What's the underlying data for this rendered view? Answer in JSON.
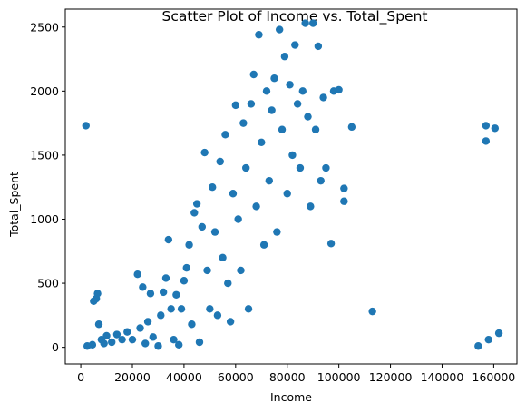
{
  "chart_data": {
    "type": "scatter",
    "title": "Scatter Plot of Income vs. Total_Spent",
    "xlabel": "Income",
    "ylabel": "Total_Spent",
    "xlim": [
      -6000,
      169000
    ],
    "ylim": [
      -130,
      2640
    ],
    "x_ticks": [
      0,
      20000,
      40000,
      60000,
      80000,
      100000,
      120000,
      140000,
      160000
    ],
    "y_ticks": [
      0,
      500,
      1000,
      1500,
      2000,
      2500
    ],
    "grid": false,
    "marker_color": "#1f77b4",
    "series": [
      {
        "points": [
          [
            2000,
            1730
          ],
          [
            2500,
            10
          ],
          [
            4500,
            20
          ],
          [
            5000,
            360
          ],
          [
            6000,
            380
          ],
          [
            6500,
            420
          ],
          [
            7000,
            180
          ],
          [
            8000,
            60
          ],
          [
            9000,
            30
          ],
          [
            10000,
            90
          ],
          [
            12000,
            40
          ],
          [
            14000,
            100
          ],
          [
            16000,
            60
          ],
          [
            18000,
            120
          ],
          [
            20000,
            60
          ],
          [
            22000,
            570
          ],
          [
            23000,
            150
          ],
          [
            24000,
            470
          ],
          [
            25000,
            30
          ],
          [
            26000,
            200
          ],
          [
            27000,
            420
          ],
          [
            28000,
            80
          ],
          [
            30000,
            10
          ],
          [
            31000,
            250
          ],
          [
            32000,
            430
          ],
          [
            33000,
            540
          ],
          [
            34000,
            840
          ],
          [
            35000,
            300
          ],
          [
            36000,
            60
          ],
          [
            37000,
            410
          ],
          [
            38000,
            20
          ],
          [
            39000,
            300
          ],
          [
            40000,
            520
          ],
          [
            41000,
            620
          ],
          [
            42000,
            800
          ],
          [
            43000,
            180
          ],
          [
            44000,
            1050
          ],
          [
            45000,
            1120
          ],
          [
            46000,
            40
          ],
          [
            47000,
            940
          ],
          [
            48000,
            1520
          ],
          [
            49000,
            600
          ],
          [
            50000,
            300
          ],
          [
            51000,
            1250
          ],
          [
            52000,
            900
          ],
          [
            53000,
            250
          ],
          [
            54000,
            1450
          ],
          [
            55000,
            700
          ],
          [
            56000,
            1660
          ],
          [
            57000,
            500
          ],
          [
            58000,
            200
          ],
          [
            59000,
            1200
          ],
          [
            60000,
            1890
          ],
          [
            61000,
            1000
          ],
          [
            62000,
            600
          ],
          [
            63000,
            1750
          ],
          [
            64000,
            1400
          ],
          [
            65000,
            300
          ],
          [
            66000,
            1900
          ],
          [
            67000,
            2130
          ],
          [
            68000,
            1100
          ],
          [
            69000,
            2440
          ],
          [
            70000,
            1600
          ],
          [
            71000,
            800
          ],
          [
            72000,
            2000
          ],
          [
            73000,
            1300
          ],
          [
            74000,
            1850
          ],
          [
            75000,
            2100
          ],
          [
            76000,
            900
          ],
          [
            77000,
            2480
          ],
          [
            78000,
            1700
          ],
          [
            79000,
            2270
          ],
          [
            80000,
            1200
          ],
          [
            81000,
            2050
          ],
          [
            82000,
            1500
          ],
          [
            83000,
            2360
          ],
          [
            84000,
            1900
          ],
          [
            85000,
            1400
          ],
          [
            86000,
            2000
          ],
          [
            87000,
            2530
          ],
          [
            88000,
            1800
          ],
          [
            89000,
            1100
          ],
          [
            90000,
            2530
          ],
          [
            91000,
            1700
          ],
          [
            92000,
            2350
          ],
          [
            93000,
            1300
          ],
          [
            94000,
            1950
          ],
          [
            95000,
            1400
          ],
          [
            97000,
            810
          ],
          [
            98000,
            2000
          ],
          [
            100000,
            2010
          ],
          [
            102000,
            1240
          ],
          [
            102000,
            1140
          ],
          [
            105000,
            1720
          ],
          [
            113000,
            280
          ],
          [
            154000,
            10
          ],
          [
            157000,
            1730
          ],
          [
            157000,
            1610
          ],
          [
            158000,
            60
          ],
          [
            160500,
            1710
          ],
          [
            162000,
            110
          ]
        ]
      }
    ]
  }
}
